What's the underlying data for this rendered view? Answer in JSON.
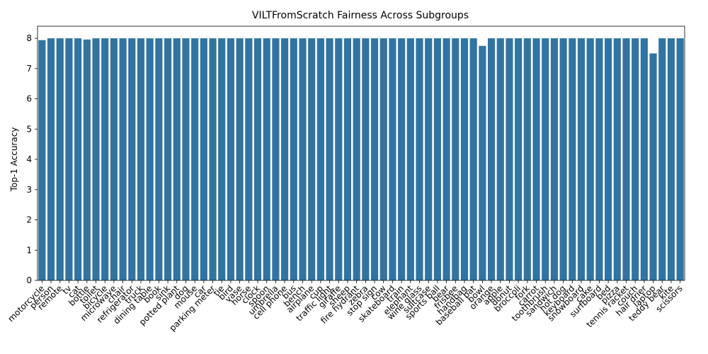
{
  "chart_data": {
    "type": "bar",
    "title": "VILTFromScratch Fairness Across Subgroups",
    "xlabel": "",
    "ylabel": "Top-1 Accuracy",
    "ylim": [
      0,
      8.4
    ],
    "yticks": [
      0,
      1,
      2,
      3,
      4,
      5,
      6,
      7,
      8
    ],
    "grid": false,
    "bar_color": "#3274a1",
    "categories": [
      "motorcycle",
      "person",
      "remote",
      "tv",
      "cat",
      "bottle",
      "toilet",
      "bicycle",
      "microwave",
      "chair",
      "refrigerator",
      "truck",
      "dining table",
      "book",
      "sink",
      "potted plant",
      "dog",
      "mouse",
      "car",
      "parking meter",
      "tie",
      "bird",
      "vase",
      "horse",
      "clock",
      "spoon",
      "umbrella",
      "cell phone",
      "bus",
      "bench",
      "airplane",
      "cup",
      "traffic light",
      "giraffe",
      "sheep",
      "fire hydrant",
      "zebra",
      "stop sign",
      "cow",
      "skateboard",
      "train",
      "elephant",
      "wine glass",
      "suitcase",
      "sports ball",
      "bear",
      "frisbee",
      "handbag",
      "baseball bat",
      "bowl",
      "orange",
      "apple",
      "donut",
      "broccoli",
      "fork",
      "carrot",
      "toothbrush",
      "sandwich",
      "hot dog",
      "keyboard",
      "snowboard",
      "cake",
      "surfboard",
      "bed",
      "pizza",
      "tennis racket",
      "couch",
      "hair drier",
      "laptop",
      "teddy bear",
      "kite",
      "scissors"
    ],
    "values": [
      7.94,
      8.0,
      8.0,
      8.0,
      8.0,
      7.96,
      8.0,
      8.0,
      8.0,
      8.0,
      8.0,
      8.0,
      8.0,
      8.0,
      8.0,
      8.0,
      8.0,
      8.0,
      8.0,
      8.0,
      8.0,
      8.0,
      8.0,
      8.0,
      8.0,
      8.0,
      8.0,
      8.0,
      8.0,
      8.0,
      8.0,
      8.0,
      8.0,
      8.0,
      8.0,
      8.0,
      8.0,
      8.0,
      8.0,
      8.0,
      8.0,
      8.0,
      8.0,
      8.0,
      8.0,
      8.0,
      8.0,
      8.0,
      8.0,
      7.75,
      8.0,
      8.0,
      8.0,
      8.0,
      8.0,
      8.0,
      8.0,
      8.0,
      8.0,
      8.0,
      8.0,
      8.0,
      8.0,
      8.0,
      8.0,
      8.0,
      8.0,
      8.0,
      7.5,
      8.0,
      8.0,
      8.0
    ]
  }
}
